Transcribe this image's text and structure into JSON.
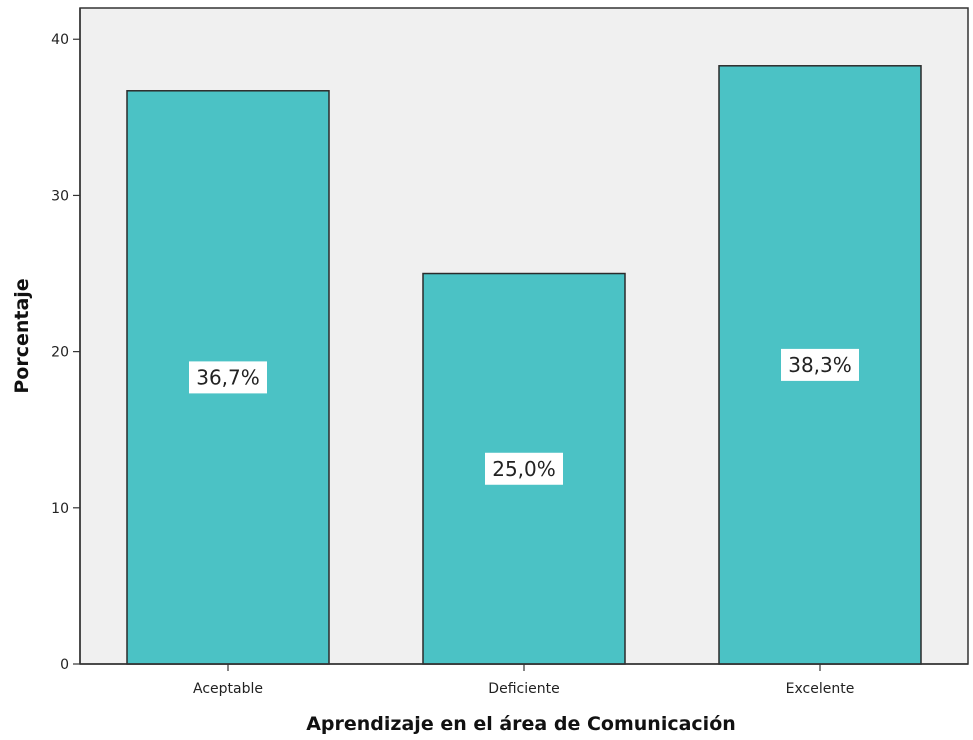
{
  "chart_data": {
    "type": "bar",
    "title": "",
    "xlabel": "Aprendizaje en el área de Comunicación",
    "ylabel": "Porcentaje",
    "categories": [
      "Aceptable",
      "Deficiente",
      "Excelente"
    ],
    "values": [
      36.7,
      25.0,
      38.3
    ],
    "data_labels": [
      "36,7%",
      "25,0%",
      "38,3%"
    ],
    "yticks": [
      0,
      10,
      20,
      30,
      40
    ],
    "ytick_labels": [
      "0",
      "10",
      "20",
      "30",
      "40"
    ],
    "ylim": [
      0,
      42
    ],
    "grid": false,
    "legend": "none",
    "colors": {
      "bar_fill": "#4bc2c5",
      "bar_stroke": "#2b2b2b",
      "plot_background": "#f0f0f0",
      "axis": "#333333",
      "label_box": "#ffffff"
    }
  }
}
